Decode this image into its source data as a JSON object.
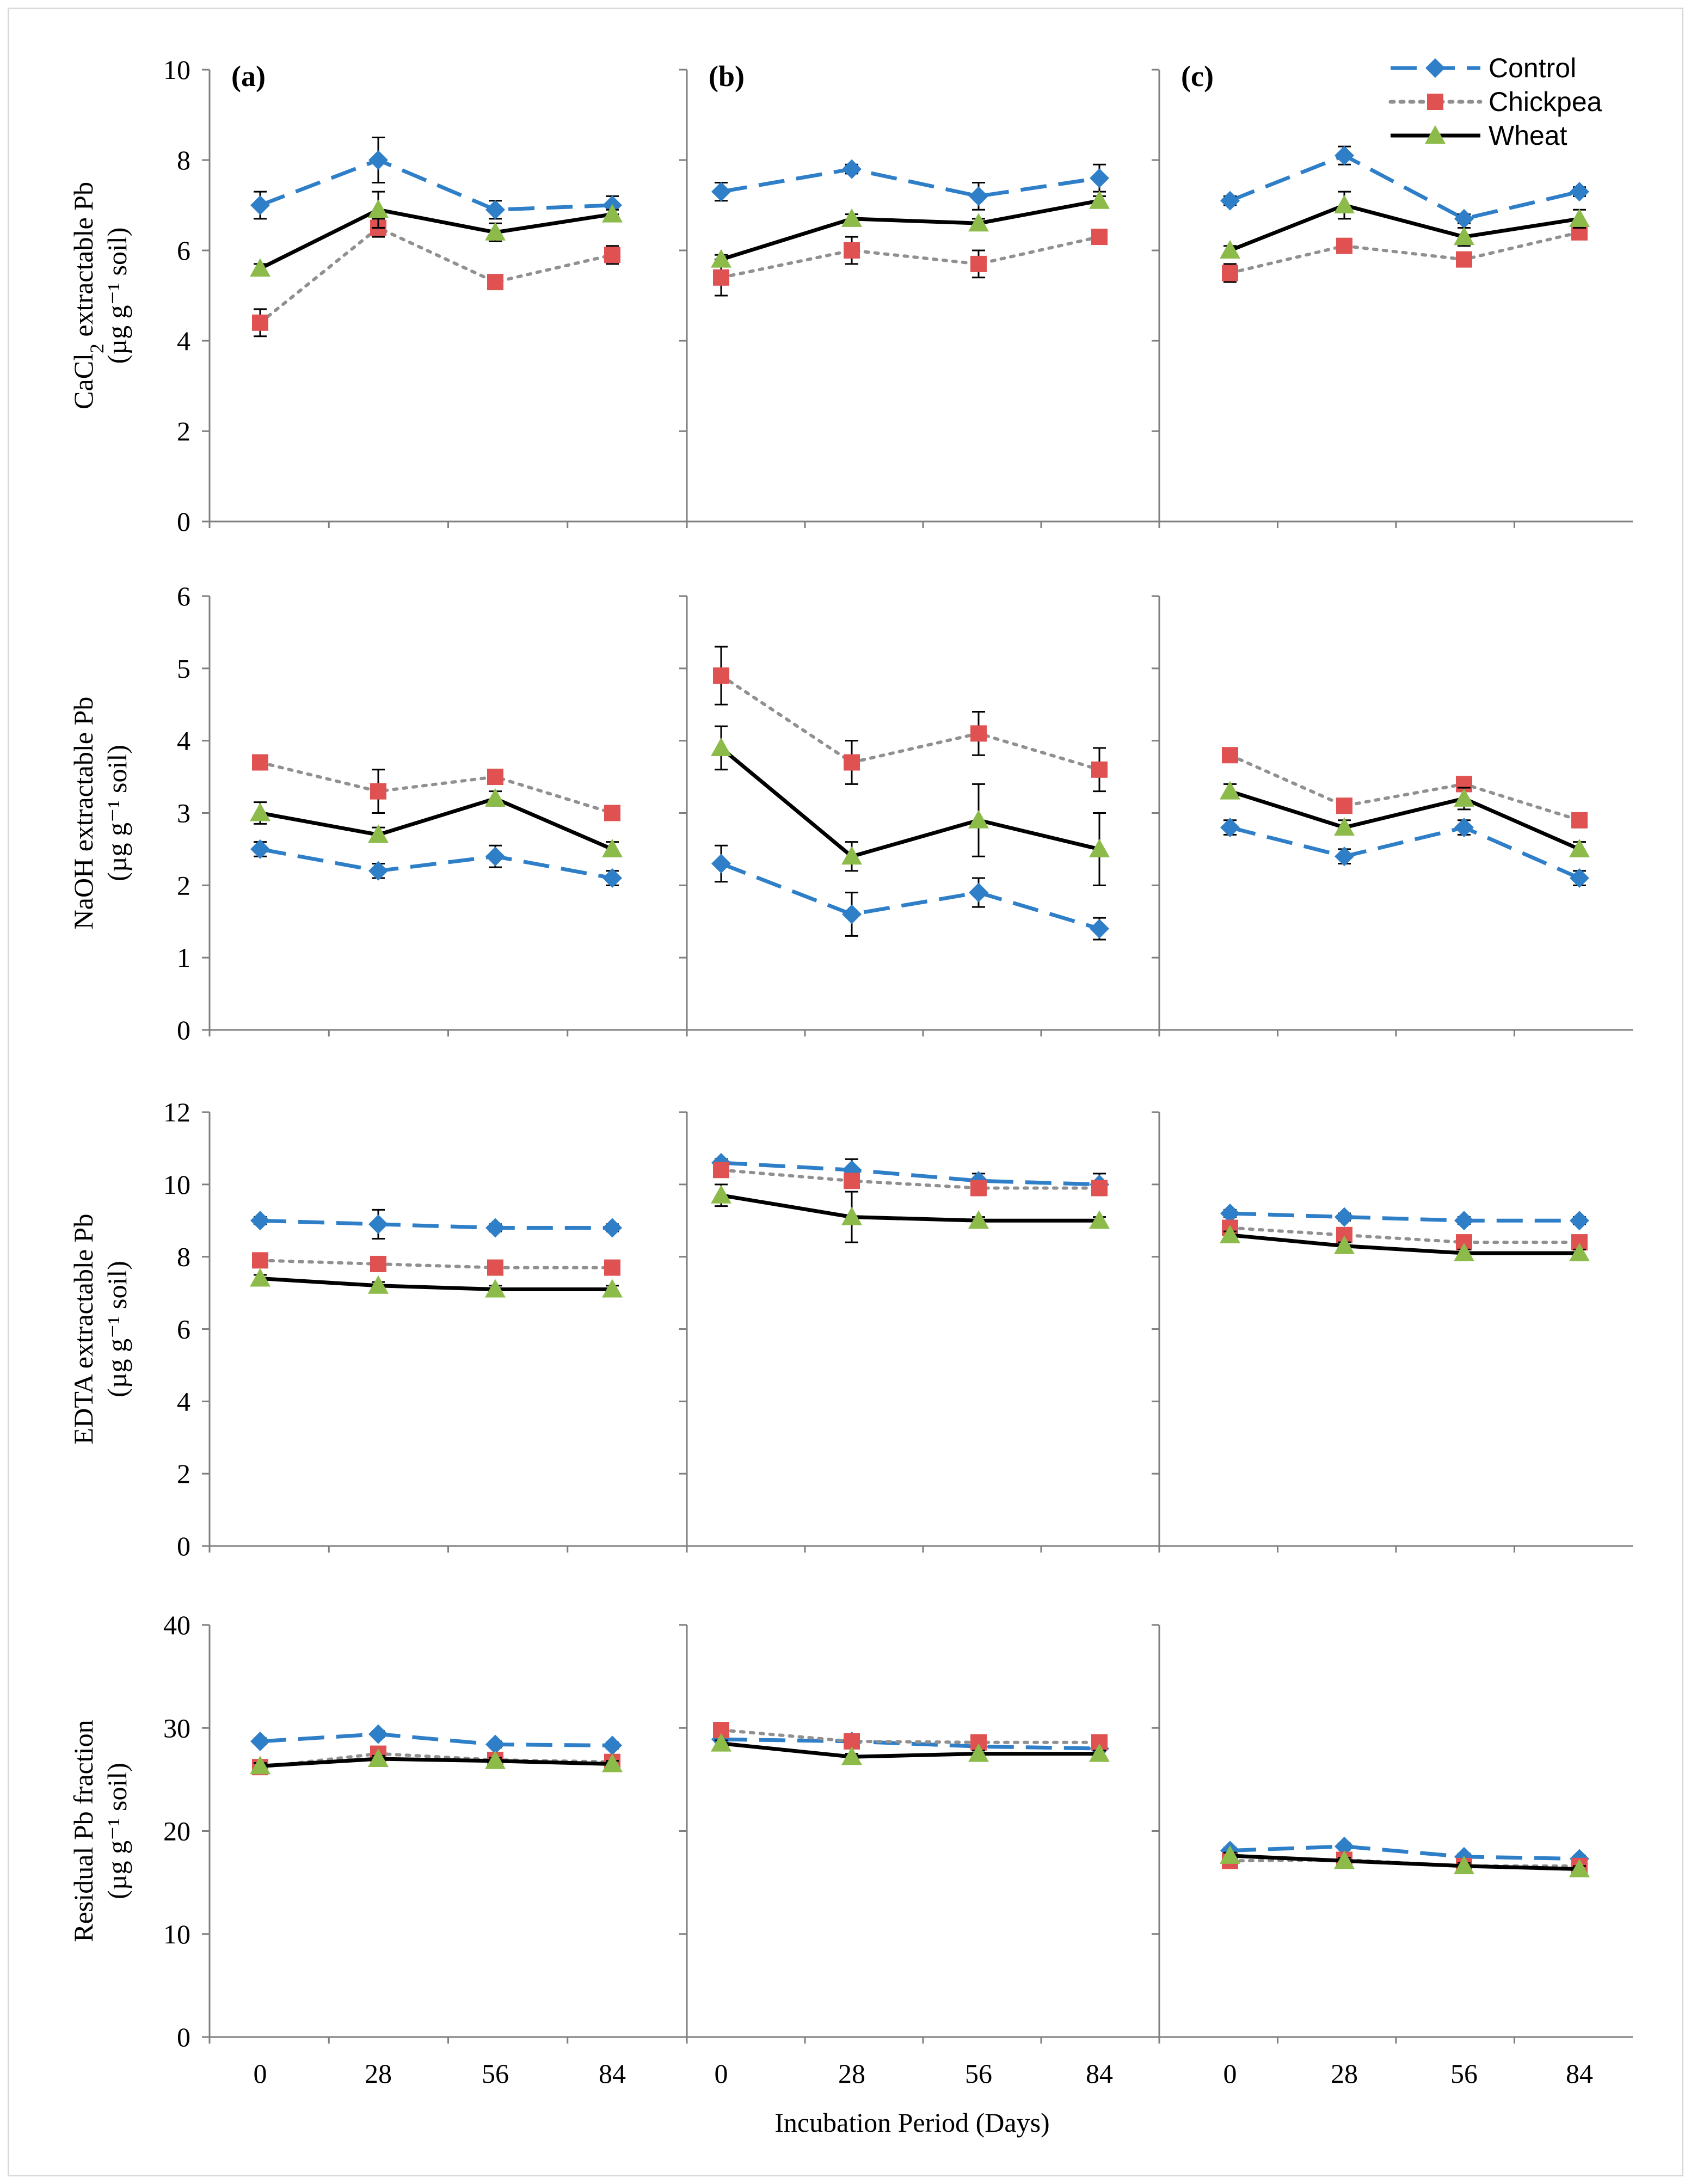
{
  "figure": {
    "xlabel": "Incubation Period (Days)",
    "panel_labels": [
      "(a)",
      "(b)",
      "(c)"
    ],
    "legend": [
      "Control",
      "Chickpea",
      "Wheat"
    ]
  },
  "colors": {
    "control": "#2e7fc8",
    "chickpea": "#e05252",
    "wheat": "#8dbb4a",
    "wheat_line": "#000000",
    "axis": "#7f7f7f"
  },
  "chart_data": [
    {
      "type": "line",
      "row": "CaCl2",
      "ylabel_line1": "CaCl",
      "ylabel_sub": "2",
      "ylabel_rest": " extractable Pb",
      "ylabel_line2": "(µg g⁻¹ soil)",
      "ylim": [
        0,
        10
      ],
      "yticks": [
        "0",
        "2",
        "4",
        "6",
        "8",
        "10"
      ],
      "x": [
        0,
        28,
        56,
        84
      ],
      "xticks": [
        "0",
        "28",
        "56",
        "84"
      ],
      "panels": [
        {
          "label": "(a)",
          "series": [
            {
              "name": "Control",
              "values": [
                7.0,
                8.0,
                6.9,
                7.0
              ],
              "err": [
                0.3,
                0.5,
                0.2,
                0.2
              ]
            },
            {
              "name": "Chickpea",
              "values": [
                4.4,
                6.5,
                5.3,
                5.9
              ],
              "err": [
                0.3,
                0.2,
                0.1,
                0.2
              ]
            },
            {
              "name": "Wheat",
              "values": [
                5.6,
                6.9,
                6.4,
                6.8
              ],
              "err": [
                0.1,
                0.4,
                0.2,
                0.1
              ]
            }
          ]
        },
        {
          "label": "(b)",
          "series": [
            {
              "name": "Control",
              "values": [
                7.3,
                7.8,
                7.2,
                7.6
              ],
              "err": [
                0.2,
                0.1,
                0.3,
                0.3
              ]
            },
            {
              "name": "Chickpea",
              "values": [
                5.4,
                6.0,
                5.7,
                6.3
              ],
              "err": [
                0.4,
                0.3,
                0.3,
                0.1
              ]
            },
            {
              "name": "Wheat",
              "values": [
                5.8,
                6.7,
                6.6,
                7.1
              ],
              "err": [
                0.1,
                0.1,
                0.1,
                0.1
              ]
            }
          ]
        },
        {
          "label": "(c)",
          "series": [
            {
              "name": "Control",
              "values": [
                7.1,
                8.1,
                6.7,
                7.3
              ],
              "err": [
                0.1,
                0.2,
                0.1,
                0.1
              ]
            },
            {
              "name": "Chickpea",
              "values": [
                5.5,
                6.1,
                5.8,
                6.4
              ],
              "err": [
                0.2,
                0.1,
                0.1,
                0.1
              ]
            },
            {
              "name": "Wheat",
              "values": [
                6.0,
                7.0,
                6.3,
                6.7
              ],
              "err": [
                0.1,
                0.3,
                0.2,
                0.2
              ]
            }
          ]
        }
      ]
    },
    {
      "type": "line",
      "row": "NaOH",
      "ylabel_line1": "NaOH extractable Pb",
      "ylabel_line2": "(µg g⁻¹ soil)",
      "ylim": [
        0,
        6
      ],
      "yticks": [
        "0",
        "1",
        "2",
        "3",
        "4",
        "5",
        "6"
      ],
      "x": [
        0,
        28,
        56,
        84
      ],
      "xticks": [
        "0",
        "28",
        "56",
        "84"
      ],
      "panels": [
        {
          "label": "",
          "series": [
            {
              "name": "Control",
              "values": [
                2.5,
                2.2,
                2.4,
                2.1
              ],
              "err": [
                0.1,
                0.1,
                0.15,
                0.1
              ]
            },
            {
              "name": "Chickpea",
              "values": [
                3.7,
                3.3,
                3.5,
                3.0
              ],
              "err": [
                0.1,
                0.3,
                0.1,
                0.1
              ]
            },
            {
              "name": "Wheat",
              "values": [
                3.0,
                2.7,
                3.2,
                2.5
              ],
              "err": [
                0.15,
                0.1,
                0.1,
                0.1
              ]
            }
          ]
        },
        {
          "label": "",
          "series": [
            {
              "name": "Control",
              "values": [
                2.3,
                1.6,
                1.9,
                1.4
              ],
              "err": [
                0.25,
                0.3,
                0.2,
                0.15
              ]
            },
            {
              "name": "Chickpea",
              "values": [
                4.9,
                3.7,
                4.1,
                3.6
              ],
              "err": [
                0.4,
                0.3,
                0.3,
                0.3
              ]
            },
            {
              "name": "Wheat",
              "values": [
                3.9,
                2.4,
                2.9,
                2.5
              ],
              "err": [
                0.3,
                0.2,
                0.5,
                0.5
              ]
            }
          ]
        },
        {
          "label": "",
          "series": [
            {
              "name": "Control",
              "values": [
                2.8,
                2.4,
                2.8,
                2.1
              ],
              "err": [
                0.1,
                0.1,
                0.1,
                0.1
              ]
            },
            {
              "name": "Chickpea",
              "values": [
                3.8,
                3.1,
                3.4,
                2.9
              ],
              "err": [
                0.1,
                0.1,
                0.1,
                0.1
              ]
            },
            {
              "name": "Wheat",
              "values": [
                3.3,
                2.8,
                3.2,
                2.5
              ],
              "err": [
                0.1,
                0.1,
                0.15,
                0.1
              ]
            }
          ]
        }
      ]
    },
    {
      "type": "line",
      "row": "EDTA",
      "ylabel_line1": "EDTA extractable Pb",
      "ylabel_line2": "(µg g⁻¹ soil)",
      "ylim": [
        0,
        12
      ],
      "yticks": [
        "0",
        "2",
        "4",
        "6",
        "8",
        "10",
        "12"
      ],
      "x": [
        0,
        28,
        56,
        84
      ],
      "xticks": [
        "0",
        "28",
        "56",
        "84"
      ],
      "panels": [
        {
          "label": "",
          "series": [
            {
              "name": "Control",
              "values": [
                9.0,
                8.9,
                8.8,
                8.8
              ],
              "err": [
                0.1,
                0.4,
                0.1,
                0.1
              ]
            },
            {
              "name": "Chickpea",
              "values": [
                7.9,
                7.8,
                7.7,
                7.7
              ],
              "err": [
                0.1,
                0.1,
                0.1,
                0.1
              ]
            },
            {
              "name": "Wheat",
              "values": [
                7.4,
                7.2,
                7.1,
                7.1
              ],
              "err": [
                0.1,
                0.1,
                0.1,
                0.1
              ]
            }
          ]
        },
        {
          "label": "",
          "series": [
            {
              "name": "Control",
              "values": [
                10.6,
                10.4,
                10.1,
                10.0
              ],
              "err": [
                0.1,
                0.3,
                0.2,
                0.3
              ]
            },
            {
              "name": "Chickpea",
              "values": [
                10.4,
                10.1,
                9.9,
                9.9
              ],
              "err": [
                0.1,
                0.2,
                0.2,
                0.2
              ]
            },
            {
              "name": "Wheat",
              "values": [
                9.7,
                9.1,
                9.0,
                9.0
              ],
              "err": [
                0.3,
                0.7,
                0.1,
                0.1
              ]
            }
          ]
        },
        {
          "label": "",
          "series": [
            {
              "name": "Control",
              "values": [
                9.2,
                9.1,
                9.0,
                9.0
              ],
              "err": [
                0.1,
                0.1,
                0.1,
                0.1
              ]
            },
            {
              "name": "Chickpea",
              "values": [
                8.8,
                8.6,
                8.4,
                8.4
              ],
              "err": [
                0.1,
                0.1,
                0.1,
                0.1
              ]
            },
            {
              "name": "Wheat",
              "values": [
                8.6,
                8.3,
                8.1,
                8.1
              ],
              "err": [
                0.1,
                0.1,
                0.1,
                0.1
              ]
            }
          ]
        }
      ]
    },
    {
      "type": "line",
      "row": "Residual",
      "ylabel_line1": "Residual Pb fraction",
      "ylabel_line2": "(µg g⁻¹ soil)",
      "ylim": [
        0,
        40
      ],
      "yticks": [
        "0",
        "10",
        "20",
        "30",
        "40"
      ],
      "x": [
        0,
        28,
        56,
        84
      ],
      "xticks": [
        "0",
        "28",
        "56",
        "84"
      ],
      "panels": [
        {
          "label": "",
          "series": [
            {
              "name": "Control",
              "values": [
                28.7,
                29.4,
                28.4,
                28.3
              ],
              "err": [
                0.3,
                0.3,
                0.3,
                0.3
              ]
            },
            {
              "name": "Chickpea",
              "values": [
                26.2,
                27.5,
                26.9,
                26.7
              ],
              "err": [
                0.3,
                0.3,
                0.3,
                0.3
              ]
            },
            {
              "name": "Wheat",
              "values": [
                26.3,
                27.0,
                26.8,
                26.5
              ],
              "err": [
                0.3,
                0.3,
                0.3,
                0.3
              ]
            }
          ]
        },
        {
          "label": "",
          "series": [
            {
              "name": "Control",
              "values": [
                28.9,
                28.7,
                28.2,
                28.0
              ],
              "err": [
                0.3,
                0.3,
                0.3,
                0.3
              ]
            },
            {
              "name": "Chickpea",
              "values": [
                29.8,
                28.7,
                28.6,
                28.6
              ],
              "err": [
                0.3,
                0.3,
                0.3,
                0.3
              ]
            },
            {
              "name": "Wheat",
              "values": [
                28.5,
                27.2,
                27.5,
                27.5
              ],
              "err": [
                0.3,
                0.3,
                0.3,
                0.3
              ]
            }
          ]
        },
        {
          "label": "",
          "series": [
            {
              "name": "Control",
              "values": [
                18.1,
                18.5,
                17.5,
                17.3
              ],
              "err": [
                0.3,
                0.3,
                0.3,
                0.3
              ]
            },
            {
              "name": "Chickpea",
              "values": [
                17.1,
                17.2,
                16.6,
                16.6
              ],
              "err": [
                0.3,
                0.3,
                0.3,
                0.3
              ]
            },
            {
              "name": "Wheat",
              "values": [
                17.6,
                17.1,
                16.6,
                16.3
              ],
              "err": [
                0.3,
                0.3,
                0.3,
                0.3
              ]
            }
          ]
        }
      ]
    }
  ]
}
